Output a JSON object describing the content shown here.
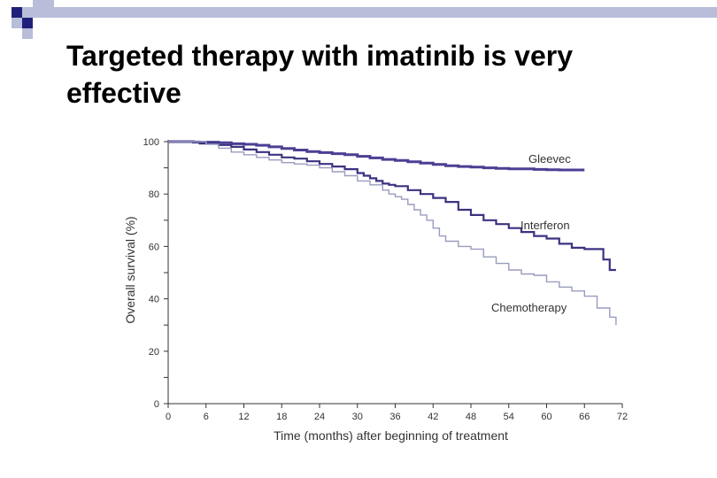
{
  "slide": {
    "title": "Targeted therapy with imatinib is very\neffective",
    "accent_color": "#1f1f7a",
    "accent_light": "#b8bdd9"
  },
  "chart_data": {
    "type": "line",
    "title": "",
    "xlabel": "Time (months) after beginning of treatment",
    "ylabel": "Overall survival (%)",
    "xlim": [
      0,
      72
    ],
    "ylim": [
      0,
      100
    ],
    "xticks": [
      0,
      6,
      12,
      18,
      24,
      30,
      36,
      42,
      48,
      54,
      60,
      66,
      72
    ],
    "yticks": [
      0,
      20,
      40,
      60,
      80,
      100
    ],
    "grid": false,
    "legend": "inline labels",
    "series": [
      {
        "name": "Gleevec",
        "color": "#4b3f94",
        "x": [
          0,
          4,
          8,
          10,
          12,
          14,
          16,
          18,
          20,
          22,
          24,
          26,
          28,
          30,
          32,
          34,
          36,
          38,
          40,
          42,
          44,
          46,
          48,
          50,
          52,
          54,
          56,
          58,
          60,
          62,
          64,
          66
        ],
        "y": [
          100,
          99.8,
          99.6,
          99.2,
          99.0,
          98.6,
          98.0,
          97.4,
          96.8,
          96.2,
          95.8,
          95.4,
          95.0,
          94.4,
          93.8,
          93.2,
          92.8,
          92.3,
          91.8,
          91.3,
          90.8,
          90.5,
          90.3,
          90.0,
          89.8,
          89.6,
          89.6,
          89.4,
          89.3,
          89.2,
          89.2,
          89.2
        ]
      },
      {
        "name": "Interferon",
        "color": "#3b3380",
        "x": [
          0,
          5,
          8,
          10,
          12,
          14,
          16,
          18,
          20,
          22,
          24,
          26,
          28,
          30,
          31,
          32,
          33,
          34,
          35,
          36,
          38,
          40,
          42,
          44,
          46,
          48,
          50,
          52,
          54,
          56,
          58,
          60,
          62,
          64,
          66,
          68,
          69,
          70,
          71
        ],
        "y": [
          100,
          99.3,
          98.7,
          98.0,
          97.0,
          96.0,
          95.0,
          94.0,
          93.5,
          92.5,
          91.5,
          90.5,
          89.5,
          88.0,
          87.0,
          86.0,
          85.0,
          84.0,
          83.5,
          83.0,
          81.5,
          80.0,
          78.5,
          77.0,
          74.0,
          72.0,
          70.0,
          68.5,
          67.0,
          65.5,
          64.0,
          63.0,
          61.0,
          59.5,
          59.0,
          59.0,
          55.0,
          51.0,
          51.0
        ]
      },
      {
        "name": "Chemotherapy",
        "color": "#9a9cbf",
        "x": [
          0,
          6,
          8,
          10,
          12,
          14,
          16,
          18,
          20,
          22,
          24,
          26,
          28,
          30,
          32,
          34,
          35,
          36,
          37,
          38,
          39,
          40,
          41,
          42,
          43,
          44,
          46,
          48,
          50,
          52,
          54,
          56,
          58,
          60,
          62,
          64,
          66,
          68,
          70,
          71
        ],
        "y": [
          100,
          99.0,
          97.5,
          96.0,
          95.0,
          94.0,
          93.0,
          92.0,
          91.5,
          91.0,
          90.0,
          88.5,
          87.0,
          85.0,
          83.5,
          81.5,
          80.0,
          79.0,
          78.0,
          76.0,
          74.0,
          72.0,
          70.0,
          67.0,
          64.0,
          62.0,
          60.0,
          59.0,
          56.0,
          53.5,
          51.0,
          49.5,
          49.0,
          46.5,
          44.5,
          43.0,
          41.0,
          36.5,
          33.0,
          30.0
        ]
      }
    ]
  }
}
